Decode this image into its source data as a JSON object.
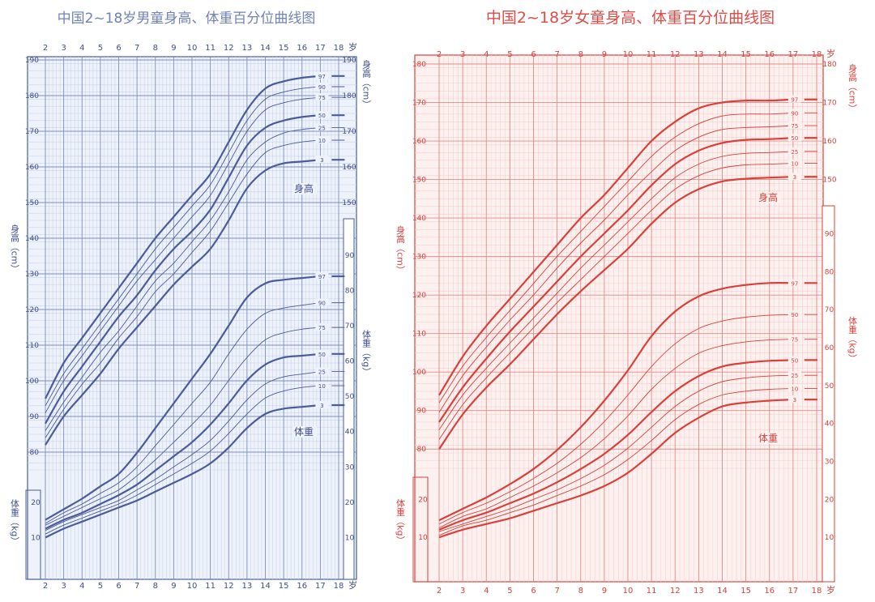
{
  "chart_data": [
    {
      "type": "line",
      "title": "中国2~18岁男童身高、体重百分位曲线图",
      "x_unit": "岁",
      "xlim": [
        2,
        18
      ],
      "x_ticks": [
        2,
        3,
        4,
        5,
        6,
        7,
        8,
        9,
        10,
        11,
        12,
        13,
        14,
        15,
        16,
        17,
        18
      ],
      "grid": true,
      "colors": {
        "line": "#4a5c9a",
        "grid_major": "#7d8fc0",
        "grid_minor": "#c9d3ea",
        "text": "#3f4f8c",
        "title": "#6f83b4",
        "background": "#eef2fb"
      },
      "height": {
        "ylabel": "身高（cm）",
        "label": "身高",
        "ylim": [
          75,
          190
        ],
        "y_ticks": [
          80,
          90,
          100,
          110,
          120,
          130,
          140,
          150,
          160,
          170,
          180,
          190
        ],
        "right_y_ticks": [
          150,
          160,
          170,
          180,
          190
        ],
        "x": [
          2,
          3,
          4,
          5,
          6,
          7,
          8,
          9,
          10,
          11,
          12,
          13,
          14,
          15,
          16,
          17
        ],
        "series": [
          {
            "name": "97",
            "values": [
              95,
              105,
              112,
              119,
              126,
              133,
              140,
              146,
              152,
              158,
              167,
              176,
              182,
              184,
              185,
              185.5
            ]
          },
          {
            "name": "90",
            "values": [
              93,
              102,
              109,
              116,
              123,
              130,
              137,
              143,
              149,
              155,
              164,
              173,
              179,
              181,
              182,
              182.5
            ]
          },
          {
            "name": "75",
            "values": [
              91,
              100,
              107,
              114,
              121,
              128,
              134,
              140,
              146,
              152,
              161,
              170,
              176,
              178,
              179,
              179.5
            ]
          },
          {
            "name": "50",
            "values": [
              88,
              97,
              104,
              111,
              118,
              124,
              131,
              137,
              142,
              148,
              157,
              166,
              171,
              173,
              174,
              174.5
            ]
          },
          {
            "name": "25",
            "values": [
              86,
              94,
              101,
              108,
              114,
              121,
              128,
              133,
              139,
              145,
              153,
              162,
              167,
              169.5,
              170.5,
              171
            ]
          },
          {
            "name": "10",
            "values": [
              84,
              92,
              99,
              105,
              112,
              118,
              125,
              130,
              136,
              142,
              150,
              158,
              164,
              166,
              167,
              167.5
            ]
          },
          {
            "name": "3",
            "values": [
              82,
              90,
              96,
              102,
              109,
              115,
              121,
              127,
              132,
              137,
              145,
              154,
              159,
              161,
              161.5,
              162
            ]
          }
        ]
      },
      "weight": {
        "ylabel": "体重（kg）",
        "label": "体重",
        "ylim": [
          0,
          95
        ],
        "left_y_ticks": [
          10,
          20
        ],
        "right_y_ticks": [
          10,
          20,
          30,
          40,
          50,
          60,
          70,
          80,
          90
        ],
        "x": [
          2,
          3,
          4,
          5,
          6,
          7,
          8,
          9,
          10,
          11,
          12,
          13,
          14,
          15,
          16,
          17
        ],
        "series": [
          {
            "name": "97",
            "values": [
              15,
              18,
              21,
              24.5,
              28,
              34,
              41,
              48,
              55,
              62,
              70,
              78,
              82,
              83,
              83.5,
              84
            ]
          },
          {
            "name": "90",
            "values": [
              14,
              17,
              19.5,
              22.5,
              25.5,
              30,
              36,
              42,
              48,
              54,
              62,
              69,
              73.5,
              75,
              75.8,
              76.5
            ]
          },
          {
            "name": "75",
            "values": [
              13.5,
              16,
              18.5,
              21,
              23.5,
              27.5,
              32,
              37,
              42,
              47.5,
              54.5,
              61,
              66,
              68,
              69,
              69.5
            ]
          },
          {
            "name": "50",
            "values": [
              12.5,
              15,
              17,
              19.5,
              22,
              25,
              29,
              33,
              37,
              42,
              48,
              54.5,
              59,
              61,
              61.5,
              62
            ]
          },
          {
            "name": "25",
            "values": [
              12,
              14.5,
              16.5,
              18.5,
              20.5,
              23.5,
              26.5,
              30,
              33.5,
              37.5,
              43,
              49,
              53.5,
              55.5,
              56.3,
              57
            ]
          },
          {
            "name": "10",
            "values": [
              11,
              13.5,
              15.5,
              17.5,
              19.5,
              22,
              25,
              28,
              31,
              34.5,
              39.5,
              45,
              49.5,
              51.5,
              52.5,
              53
            ]
          },
          {
            "name": "3",
            "values": [
              10,
              12.5,
              14.5,
              16.5,
              18.5,
              20.5,
              23,
              25.5,
              28,
              31,
              35.5,
              41,
              45,
              46.5,
              47,
              47.5
            ]
          }
        ]
      }
    },
    {
      "type": "line",
      "title": "中国2~18岁女童身高、体重百分位曲线图",
      "x_unit": "岁",
      "xlim": [
        2,
        18
      ],
      "x_ticks": [
        2,
        3,
        4,
        5,
        6,
        7,
        8,
        9,
        10,
        11,
        12,
        13,
        14,
        15,
        16,
        17,
        18
      ],
      "grid": true,
      "colors": {
        "line": "#d9403a",
        "grid_major": "#e58a86",
        "grid_minor": "#f5d0ce",
        "text": "#d9403a",
        "title": "#e04b45",
        "background": "#fdf1f0"
      },
      "height": {
        "ylabel": "身高（cm）",
        "label": "身高",
        "ylim": [
          75,
          180
        ],
        "y_ticks": [
          80,
          90,
          100,
          110,
          120,
          130,
          140,
          150,
          160,
          170,
          180
        ],
        "right_y_ticks": [
          150,
          160,
          170,
          180
        ],
        "x": [
          2,
          3,
          4,
          5,
          6,
          7,
          8,
          9,
          10,
          11,
          12,
          13,
          14,
          15,
          16,
          17
        ],
        "series": [
          {
            "name": "97",
            "values": [
              94,
              104,
              112,
              119,
              126,
              133,
              140,
              146,
              153,
              160,
              165,
              168.5,
              170,
              170.5,
              170.5,
              170.8
            ]
          },
          {
            "name": "90",
            "values": [
              92,
              101.5,
              109,
              116,
              123,
              130,
              136.5,
              143,
              149.5,
              156,
              161,
              164.5,
              166.5,
              167,
              167,
              167.3
            ]
          },
          {
            "name": "75",
            "values": [
              89.5,
              99,
              106.5,
              113.5,
              120,
              127,
              133.5,
              139.5,
              146,
              152,
              157.5,
              161,
              163,
              163.5,
              163.7,
              164
            ]
          },
          {
            "name": "50",
            "values": [
              87,
              96,
              103.5,
              110.5,
              117,
              123.5,
              130,
              136,
              142,
              148.5,
              154,
              157.5,
              159.5,
              160.3,
              160.5,
              160.8
            ]
          },
          {
            "name": "25",
            "values": [
              85,
              94,
              101,
              107.5,
              114,
              120.5,
              127,
              133,
              139,
              145,
              150.5,
              154,
              156,
              156.8,
              157,
              157.3
            ]
          },
          {
            "name": "10",
            "values": [
              82.5,
              91.5,
              98.5,
              105,
              111.5,
              118,
              124,
              130,
              136,
              142,
              147.5,
              151,
              153,
              153.8,
              154,
              154.2
            ]
          },
          {
            "name": "3",
            "values": [
              80,
              89,
              96,
              102,
              108.5,
              115,
              121,
              126.5,
              132,
              138.5,
              144,
              147.5,
              149.5,
              150.2,
              150.5,
              150.7
            ]
          }
        ]
      },
      "weight": {
        "ylabel": "体重（kg）",
        "label": "体重",
        "ylim": [
          0,
          95
        ],
        "left_y_ticks": [
          10,
          20
        ],
        "right_y_ticks": [
          10,
          20,
          30,
          40,
          50,
          60,
          70,
          80,
          90
        ],
        "x": [
          2,
          3,
          4,
          5,
          6,
          7,
          8,
          9,
          10,
          11,
          12,
          13,
          14,
          15,
          16,
          17
        ],
        "series": [
          {
            "name": "97",
            "values": [
              14.5,
              17.5,
              20.5,
              24,
              28,
              33,
              39,
              46,
              54,
              63,
              69.5,
              73.5,
              75.5,
              76.5,
              77,
              77
            ]
          },
          {
            "name": "90",
            "values": [
              13.5,
              16.5,
              19,
              22,
              25.5,
              29.5,
              34.5,
              40.5,
              47.5,
              55,
              61,
              65,
              67,
              68,
              68.5,
              68.7
            ]
          },
          {
            "name": "75",
            "values": [
              12.5,
              15.5,
              17.5,
              20.5,
              23.5,
              27,
              31,
              36,
              42,
              49,
              54.5,
              58.5,
              60.5,
              61.5,
              62,
              62.2
            ]
          },
          {
            "name": "50",
            "values": [
              12,
              14.5,
              16.5,
              19,
              21.5,
              24.5,
              28,
              32,
              37,
              43,
              48.5,
              52.5,
              55,
              56,
              56.5,
              56.7
            ]
          },
          {
            "name": "25",
            "values": [
              11.5,
              13.5,
              15.5,
              17.5,
              20,
              22.5,
              25.5,
              29,
              33.5,
              39,
              44.5,
              48.5,
              51,
              52,
              52.5,
              52.7
            ]
          },
          {
            "name": "10",
            "values": [
              10.5,
              13,
              14.5,
              16.5,
              18.5,
              21,
              23.5,
              26.5,
              30.5,
              35.5,
              41,
              45,
              47.5,
              48.5,
              49,
              49.2
            ]
          },
          {
            "name": "3",
            "values": [
              10,
              12,
              13.5,
              15,
              17,
              19,
              21,
              23.5,
              27,
              32,
              37.5,
              41.5,
              44.5,
              45.5,
              46,
              46.3
            ]
          }
        ]
      }
    }
  ]
}
